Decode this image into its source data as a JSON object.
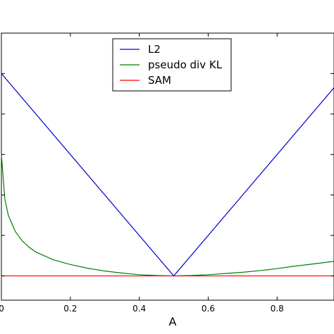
{
  "chart_data": {
    "type": "line",
    "title": "",
    "xlabel": "A",
    "ylabel": "",
    "xlim": [
      0,
      0.965
    ],
    "ylim": [
      -0.06,
      0.6
    ],
    "x_ticks": [
      0,
      0.2,
      0.4,
      0.6,
      0.8
    ],
    "x_tick_labels": [
      "0",
      "0.2",
      "0.4",
      "0.6",
      "0.8"
    ],
    "y_ticks": [
      0,
      0.1,
      0.2,
      0.3,
      0.4,
      0.5
    ],
    "grid": false,
    "legend_position": "top-center",
    "series": [
      {
        "name": "L2",
        "color": "#0000cc",
        "x": [
          0,
          0.5,
          0.965
        ],
        "y": [
          0.5,
          0,
          0.465
        ]
      },
      {
        "name": "pseudo div KL",
        "color": "#008000",
        "x": [
          0,
          0.01,
          0.02,
          0.04,
          0.06,
          0.08,
          0.1,
          0.15,
          0.2,
          0.25,
          0.3,
          0.35,
          0.4,
          0.45,
          0.5,
          0.55,
          0.6,
          0.65,
          0.7,
          0.75,
          0.8,
          0.85,
          0.9,
          0.965
        ],
        "y": [
          0.3,
          0.19,
          0.15,
          0.11,
          0.087,
          0.071,
          0.059,
          0.04,
          0.028,
          0.019,
          0.012,
          0.007,
          0.003,
          0.001,
          0,
          0.001,
          0.003,
          0.006,
          0.009,
          0.013,
          0.018,
          0.024,
          0.029,
          0.036
        ]
      },
      {
        "name": "SAM",
        "color": "#ff0000",
        "x": [
          0,
          0.965
        ],
        "y": [
          0,
          0
        ]
      }
    ]
  }
}
